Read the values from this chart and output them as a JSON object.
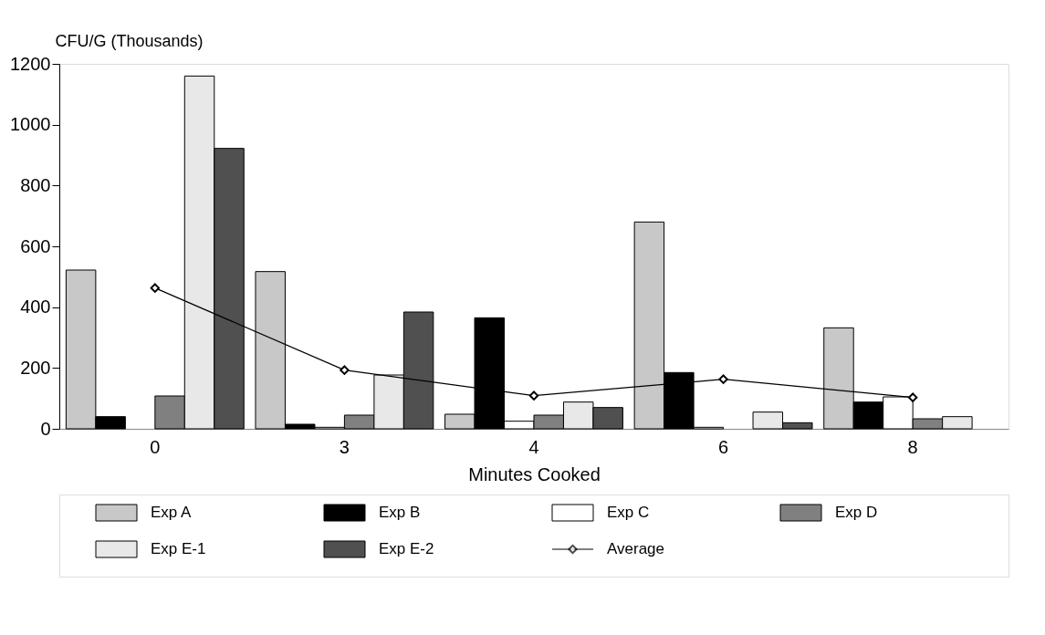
{
  "chart_data": {
    "type": "bar",
    "xlabel": "Minutes Cooked",
    "ylabel": "CFU/G (Thousands)",
    "categories": [
      "0",
      "3",
      "4",
      "6",
      "8"
    ],
    "series": [
      {
        "name": "Exp A",
        "color": "#c8c8c8",
        "values": [
          522,
          517,
          48,
          680,
          332
        ]
      },
      {
        "name": "Exp B",
        "color": "#000000",
        "values": [
          40,
          15,
          365,
          185,
          88
        ]
      },
      {
        "name": "Exp C",
        "color": "#ffffff",
        "values": [
          null,
          5,
          25,
          5,
          105
        ]
      },
      {
        "name": "Exp D",
        "color": "#808080",
        "values": [
          108,
          45,
          45,
          null,
          33
        ]
      },
      {
        "name": "Exp E-1",
        "color": "#e8e8e8",
        "values": [
          1160,
          177,
          88,
          55,
          40
        ]
      },
      {
        "name": "Exp E-2",
        "color": "#505050",
        "values": [
          922,
          384,
          70,
          20,
          null
        ]
      },
      {
        "name": "Average",
        "type": "line",
        "color": "#000000",
        "marker": "diamond",
        "values": [
          463,
          193,
          109,
          163,
          103
        ]
      }
    ],
    "ylim": [
      0,
      1200
    ],
    "yticks": [
      0,
      200,
      400,
      600,
      800,
      1000,
      1200
    ],
    "grid": false,
    "legend": "bottom"
  }
}
